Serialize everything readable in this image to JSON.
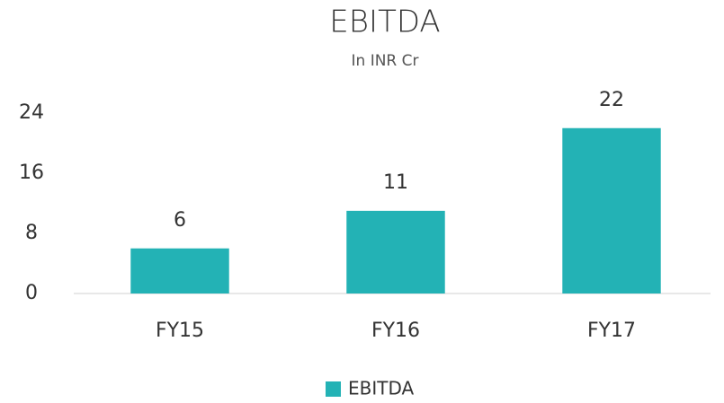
{
  "chart_data": {
    "type": "bar",
    "title": "EBITDA",
    "subtitle": "In INR Cr",
    "categories": [
      "FY15",
      "FY16",
      "FY17"
    ],
    "series": [
      {
        "name": "EBITDA",
        "color": "#23b2b5",
        "values": [
          6,
          11,
          22
        ]
      }
    ],
    "ylim": [
      0,
      24
    ],
    "yticks": [
      0,
      8,
      16,
      24
    ],
    "grid": false,
    "legend": "bottom"
  }
}
